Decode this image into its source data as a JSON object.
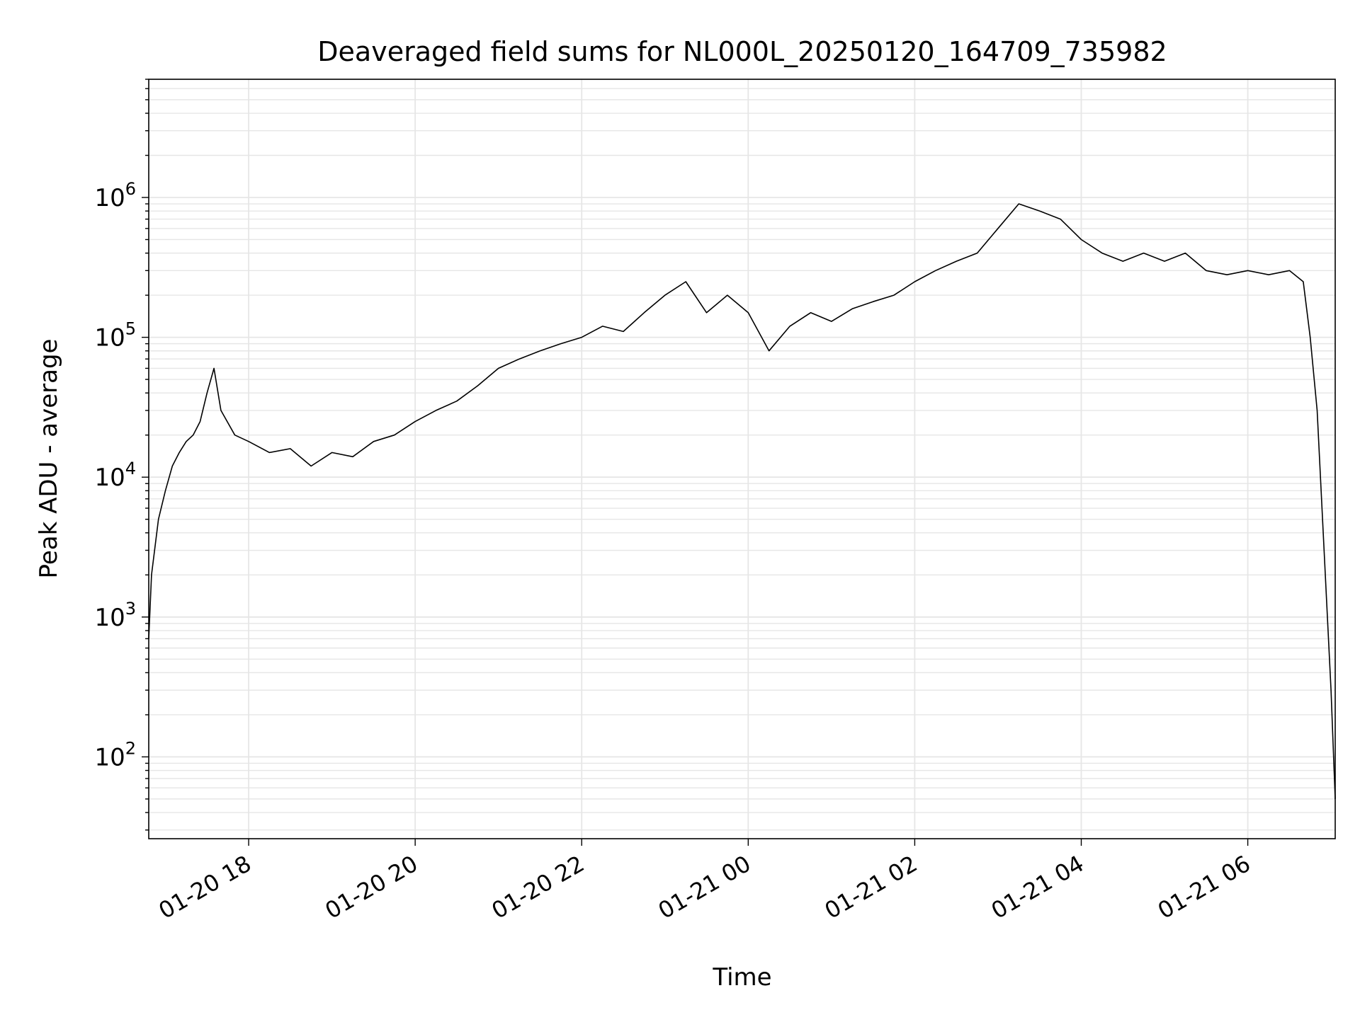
{
  "chart_data": {
    "type": "line",
    "title": "Deaveraged field sums for NL000L_20250120_164709_735982",
    "xlabel": "Time",
    "ylabel": "Peak ADU - average",
    "yscale": "log",
    "grid": true,
    "legend": "none",
    "line_color": "#000000",
    "grid_color": "#e6e6e6",
    "x_range": [
      "2025-01-20 16:48",
      "2025-01-21 07:03"
    ],
    "y_range": [
      26,
      7000000
    ],
    "x_ticks": [
      {
        "label": "01-20 18",
        "time": "2025-01-20 18:00"
      },
      {
        "label": "01-20 20",
        "time": "2025-01-20 20:00"
      },
      {
        "label": "01-20 22",
        "time": "2025-01-20 22:00"
      },
      {
        "label": "01-21 00",
        "time": "2025-01-21 00:00"
      },
      {
        "label": "01-21 02",
        "time": "2025-01-21 02:00"
      },
      {
        "label": "01-21 04",
        "time": "2025-01-21 04:00"
      },
      {
        "label": "01-21 06",
        "time": "2025-01-21 06:00"
      }
    ],
    "y_ticks": [
      {
        "base": "10",
        "exp": "2",
        "value": 100
      },
      {
        "base": "10",
        "exp": "3",
        "value": 1000
      },
      {
        "base": "10",
        "exp": "4",
        "value": 10000
      },
      {
        "base": "10",
        "exp": "5",
        "value": 100000
      },
      {
        "base": "10",
        "exp": "6",
        "value": 1000000
      }
    ],
    "series": [
      {
        "x": [
          "2025-01-20 16:48",
          "2025-01-20 16:50",
          "2025-01-20 16:55",
          "2025-01-20 17:00",
          "2025-01-20 17:05",
          "2025-01-20 17:10",
          "2025-01-20 17:15",
          "2025-01-20 17:20",
          "2025-01-20 17:25",
          "2025-01-20 17:30",
          "2025-01-20 17:35",
          "2025-01-20 17:40",
          "2025-01-20 17:50",
          "2025-01-20 18:00",
          "2025-01-20 18:15",
          "2025-01-20 18:30",
          "2025-01-20 18:45",
          "2025-01-20 19:00",
          "2025-01-20 19:15",
          "2025-01-20 19:30",
          "2025-01-20 19:45",
          "2025-01-20 20:00",
          "2025-01-20 20:15",
          "2025-01-20 20:30",
          "2025-01-20 20:45",
          "2025-01-20 21:00",
          "2025-01-20 21:15",
          "2025-01-20 21:30",
          "2025-01-20 21:45",
          "2025-01-20 22:00",
          "2025-01-20 22:15",
          "2025-01-20 22:30",
          "2025-01-20 22:45",
          "2025-01-20 23:00",
          "2025-01-20 23:15",
          "2025-01-20 23:30",
          "2025-01-20 23:45",
          "2025-01-21 00:00",
          "2025-01-21 00:15",
          "2025-01-21 00:30",
          "2025-01-21 00:45",
          "2025-01-21 01:00",
          "2025-01-21 01:15",
          "2025-01-21 01:30",
          "2025-01-21 01:45",
          "2025-01-21 02:00",
          "2025-01-21 02:15",
          "2025-01-21 02:30",
          "2025-01-21 02:45",
          "2025-01-21 03:00",
          "2025-01-21 03:15",
          "2025-01-21 03:30",
          "2025-01-21 03:45",
          "2025-01-21 04:00",
          "2025-01-21 04:15",
          "2025-01-21 04:30",
          "2025-01-21 04:45",
          "2025-01-21 05:00",
          "2025-01-21 05:15",
          "2025-01-21 05:30",
          "2025-01-21 05:45",
          "2025-01-21 06:00",
          "2025-01-21 06:15",
          "2025-01-21 06:30",
          "2025-01-21 06:40",
          "2025-01-21 06:45",
          "2025-01-21 06:50",
          "2025-01-21 06:55",
          "2025-01-21 07:00",
          "2025-01-21 07:03"
        ],
        "y": [
          700,
          2000,
          5000,
          8000,
          12000,
          15000,
          18000,
          20000,
          25000,
          40000,
          60000,
          30000,
          20000,
          18000,
          15000,
          16000,
          12000,
          15000,
          14000,
          18000,
          20000,
          25000,
          30000,
          35000,
          45000,
          60000,
          70000,
          80000,
          90000,
          100000,
          120000,
          110000,
          150000,
          200000,
          250000,
          150000,
          200000,
          150000,
          80000,
          120000,
          150000,
          130000,
          160000,
          180000,
          200000,
          250000,
          300000,
          350000,
          400000,
          600000,
          900000,
          800000,
          700000,
          500000,
          400000,
          350000,
          400000,
          350000,
          400000,
          300000,
          280000,
          300000,
          280000,
          300000,
          250000,
          100000,
          30000,
          3000,
          300,
          50
        ]
      }
    ]
  }
}
